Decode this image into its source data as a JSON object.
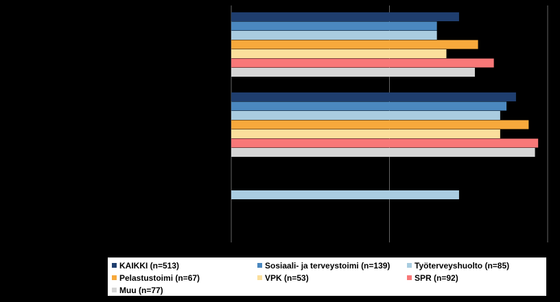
{
  "chart_data": {
    "type": "bar",
    "orientation": "horizontal",
    "xlim": [
      0,
      100
    ],
    "grid": true,
    "legend_position": "bottom",
    "categories": [
      "",
      "",
      ""
    ],
    "series": [
      {
        "name": "KAIKKI (n=513)",
        "color": "#1F3E6E",
        "values": [
          72,
          90,
          null
        ]
      },
      {
        "name": "Sosiaali- ja terveystoimi (n=139)",
        "color": "#4B88BF",
        "values": [
          65,
          87,
          null
        ]
      },
      {
        "name": "Työterveyshuolto (n=85)",
        "color": "#A9CCE0",
        "values": [
          65,
          85,
          72
        ]
      },
      {
        "name": "Pelastustoimi (n=67)",
        "color": "#F7A93C",
        "values": [
          78,
          94,
          null
        ]
      },
      {
        "name": "VPK (n=53)",
        "color": "#FBDF9C",
        "values": [
          68,
          85,
          null
        ]
      },
      {
        "name": "SPR (n=92)",
        "color": "#F87878",
        "values": [
          83,
          97,
          null
        ]
      },
      {
        "name": "Muu (n=77)",
        "color": "#D6D6D6",
        "values": [
          77,
          96,
          null
        ]
      }
    ]
  }
}
